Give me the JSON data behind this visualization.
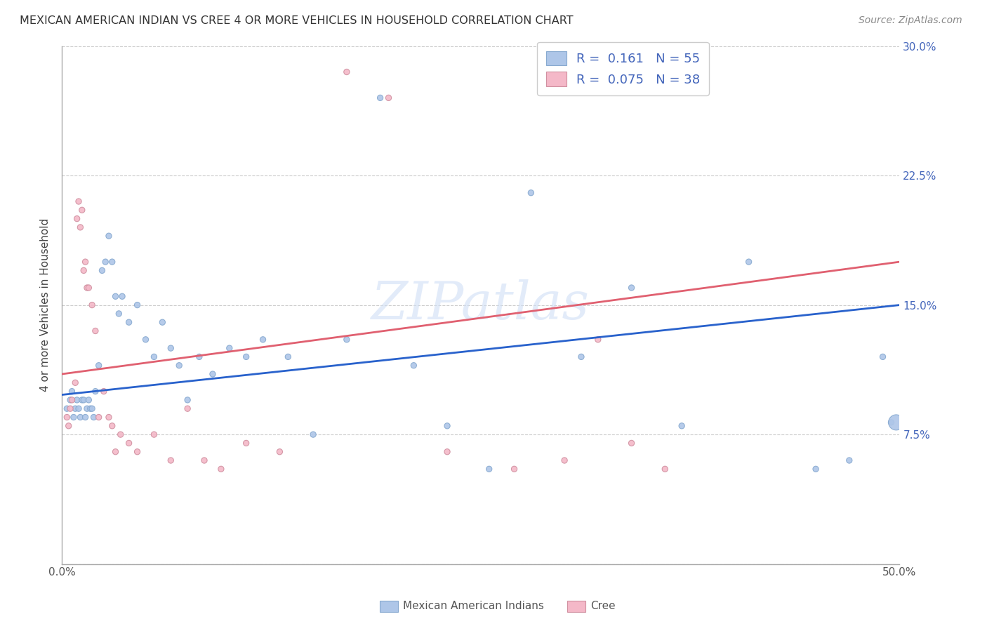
{
  "title": "MEXICAN AMERICAN INDIAN VS CREE 4 OR MORE VEHICLES IN HOUSEHOLD CORRELATION CHART",
  "source": "Source: ZipAtlas.com",
  "ylabel": "4 or more Vehicles in Household",
  "xlim": [
    0.0,
    0.5
  ],
  "ylim": [
    0.0,
    0.3
  ],
  "xticks": [
    0.0,
    0.1,
    0.2,
    0.3,
    0.4,
    0.5
  ],
  "xticklabels": [
    "0.0%",
    "",
    "",
    "",
    "",
    "50.0%"
  ],
  "yticks": [
    0.0,
    0.075,
    0.15,
    0.225,
    0.3
  ],
  "yticklabels": [
    "",
    "7.5%",
    "15.0%",
    "22.5%",
    "30.0%"
  ],
  "grid_color": "#cccccc",
  "background_color": "#ffffff",
  "watermark": "ZIPatlas",
  "blue_color": "#aec6e8",
  "pink_color": "#f4b8c8",
  "blue_line_color": "#2962cc",
  "pink_line_color": "#e06070",
  "blue_scatter_x": [
    0.003,
    0.005,
    0.006,
    0.007,
    0.008,
    0.009,
    0.01,
    0.011,
    0.012,
    0.013,
    0.014,
    0.015,
    0.016,
    0.017,
    0.018,
    0.019,
    0.02,
    0.022,
    0.024,
    0.026,
    0.028,
    0.03,
    0.032,
    0.034,
    0.036,
    0.04,
    0.045,
    0.05,
    0.055,
    0.06,
    0.065,
    0.07,
    0.075,
    0.082,
    0.09,
    0.1,
    0.11,
    0.12,
    0.135,
    0.15,
    0.17,
    0.19,
    0.21,
    0.23,
    0.255,
    0.28,
    0.31,
    0.34,
    0.37,
    0.41,
    0.45,
    0.47,
    0.49,
    0.495,
    0.498
  ],
  "blue_scatter_y": [
    0.09,
    0.095,
    0.1,
    0.085,
    0.09,
    0.095,
    0.09,
    0.085,
    0.095,
    0.095,
    0.085,
    0.09,
    0.095,
    0.09,
    0.09,
    0.085,
    0.1,
    0.115,
    0.17,
    0.175,
    0.19,
    0.175,
    0.155,
    0.145,
    0.155,
    0.14,
    0.15,
    0.13,
    0.12,
    0.14,
    0.125,
    0.115,
    0.095,
    0.12,
    0.11,
    0.125,
    0.12,
    0.13,
    0.12,
    0.075,
    0.13,
    0.27,
    0.115,
    0.08,
    0.055,
    0.215,
    0.12,
    0.16,
    0.08,
    0.175,
    0.055,
    0.06,
    0.12,
    0.082,
    0.082
  ],
  "blue_scatter_size": [
    35,
    35,
    35,
    35,
    35,
    35,
    35,
    35,
    35,
    35,
    35,
    35,
    35,
    35,
    35,
    35,
    35,
    35,
    35,
    35,
    35,
    35,
    35,
    35,
    35,
    35,
    35,
    35,
    35,
    35,
    35,
    35,
    35,
    35,
    35,
    35,
    35,
    35,
    35,
    35,
    35,
    35,
    35,
    35,
    35,
    35,
    35,
    35,
    35,
    35,
    35,
    35,
    35,
    35,
    250
  ],
  "pink_scatter_x": [
    0.003,
    0.004,
    0.005,
    0.006,
    0.008,
    0.009,
    0.01,
    0.011,
    0.012,
    0.013,
    0.014,
    0.015,
    0.016,
    0.018,
    0.02,
    0.022,
    0.025,
    0.028,
    0.03,
    0.032,
    0.035,
    0.04,
    0.045,
    0.055,
    0.065,
    0.075,
    0.085,
    0.095,
    0.11,
    0.13,
    0.17,
    0.195,
    0.23,
    0.27,
    0.3,
    0.32,
    0.34,
    0.36
  ],
  "pink_scatter_y": [
    0.085,
    0.08,
    0.09,
    0.095,
    0.105,
    0.2,
    0.21,
    0.195,
    0.205,
    0.17,
    0.175,
    0.16,
    0.16,
    0.15,
    0.135,
    0.085,
    0.1,
    0.085,
    0.08,
    0.065,
    0.075,
    0.07,
    0.065,
    0.075,
    0.06,
    0.09,
    0.06,
    0.055,
    0.07,
    0.065,
    0.285,
    0.27,
    0.065,
    0.055,
    0.06,
    0.13,
    0.07,
    0.055
  ],
  "pink_scatter_size": [
    35,
    35,
    35,
    35,
    35,
    35,
    35,
    35,
    35,
    35,
    35,
    35,
    35,
    35,
    35,
    35,
    35,
    35,
    35,
    35,
    35,
    35,
    35,
    35,
    35,
    35,
    35,
    35,
    35,
    35,
    35,
    35,
    35,
    35,
    35,
    35,
    35,
    35
  ],
  "blue_line_x0": 0.0,
  "blue_line_x1": 0.5,
  "blue_line_y0": 0.098,
  "blue_line_y1": 0.15,
  "pink_line_x0": 0.0,
  "pink_line_x1": 0.5,
  "pink_line_y0": 0.11,
  "pink_line_y1": 0.175,
  "legend_text_color": "#4466bb",
  "legend_label1": "R =  0.161   N = 55",
  "legend_label2": "R =  0.075   N = 38"
}
